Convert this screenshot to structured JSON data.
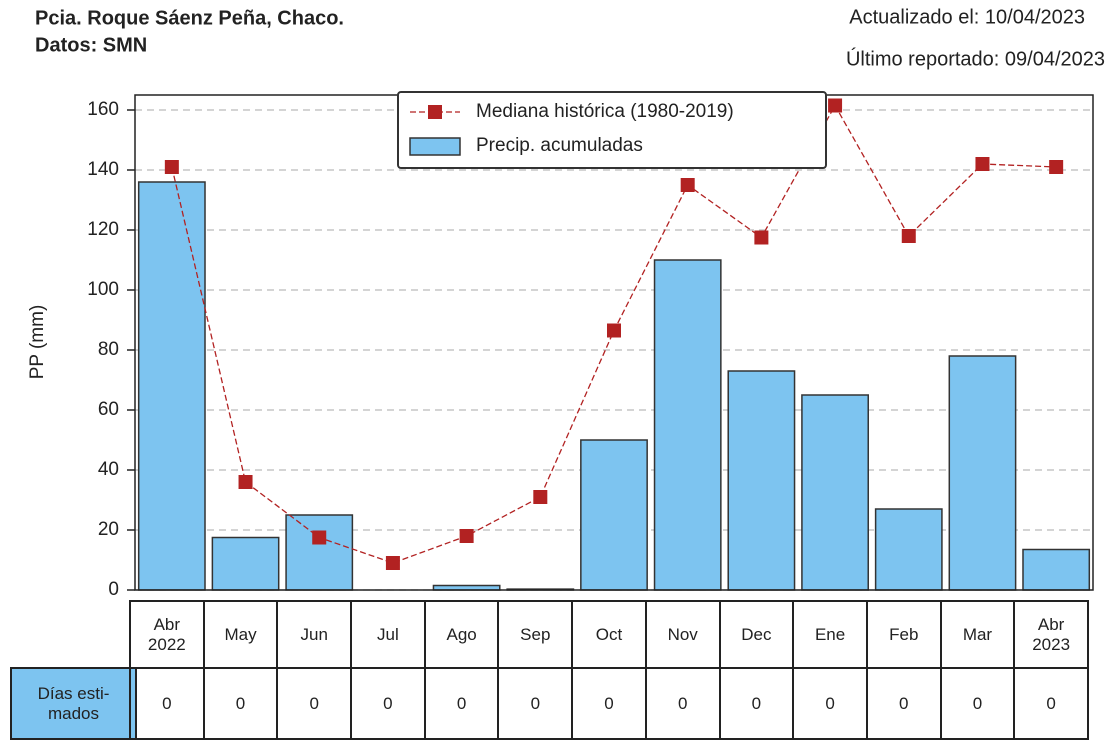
{
  "chart_data": {
    "type": "bar",
    "title": "Pcia. Roque Sáenz Peña, Chaco.",
    "subtitle": "Datos: SMN",
    "updated": "Actualizado el: 10/04/2023",
    "last_reported": "Último reportado: 09/04/2023",
    "ylabel": "PP (mm)",
    "categories": [
      "Abr\n2022",
      "May",
      "Jun",
      "Jul",
      "Ago",
      "Sep",
      "Oct",
      "Nov",
      "Dec",
      "Ene",
      "Feb",
      "Mar",
      "Abr\n2023"
    ],
    "series": [
      {
        "name": "Precip. acumuladas",
        "type": "bar",
        "color": "#7dc4f0",
        "values": [
          136,
          17.5,
          25,
          0,
          1.5,
          0.3,
          50,
          110,
          73,
          65,
          27,
          78,
          13.5
        ]
      },
      {
        "name": "Mediana histórica (1980-2019)",
        "type": "line",
        "color": "#b22222",
        "values": [
          141,
          36,
          17.5,
          9,
          18,
          31,
          86.5,
          135,
          117.5,
          161.5,
          118,
          142,
          141
        ]
      }
    ],
    "ylim": [
      0,
      165
    ],
    "yticks": [
      0,
      20,
      40,
      60,
      80,
      100,
      120,
      140,
      160
    ],
    "grid": true,
    "legend": "top center"
  },
  "table": {
    "row_label": "Días esti-\nmados",
    "values": [
      0,
      0,
      0,
      0,
      0,
      0,
      0,
      0,
      0,
      0,
      0,
      0,
      0
    ]
  }
}
